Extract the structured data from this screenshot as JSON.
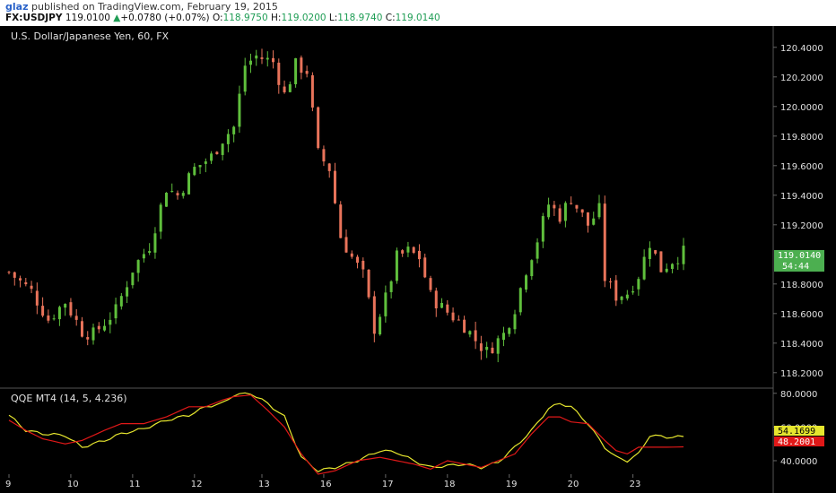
{
  "header": {
    "author": "glaz",
    "published_text": "published on TradingView.com, February 19, 2015",
    "symbol": "FX:USDJPY",
    "last": "119.0100",
    "change": "+0.0780 (+0.07%)",
    "open_label": "O:",
    "open": "118.9750",
    "high_label": "H:",
    "high": "119.0200",
    "low_label": "L:",
    "low": "118.9740",
    "close_label": "C:",
    "close": "119.0140"
  },
  "main_pane": {
    "title": "U.S. Dollar/Japanese Yen, 60, FX",
    "price_badge": "119.0140",
    "countdown_badge": "54:44"
  },
  "indicator_pane": {
    "title": "QQE MT4 (14, 5, 4.236)",
    "badge_yellow": "54.1699",
    "badge_red": "48.2001"
  },
  "colors": {
    "background": "#000000",
    "bull": "#5fbf3c",
    "bear": "#e8735a",
    "qqe_fast": "#e6e62e",
    "qqe_slow": "#e01818",
    "badge_green": "#4caf50",
    "axis_text": "#e0e0e0",
    "separator": "#555555"
  },
  "chart_data": [
    {
      "type": "candlestick",
      "title": "U.S. Dollar/Japanese Yen, 60, FX",
      "x_ticks": [
        "9",
        "10",
        "11",
        "12",
        "13",
        "16",
        "17",
        "18",
        "19",
        "20",
        "23"
      ],
      "y_ticks": [
        "120.4000",
        "120.2000",
        "120.0000",
        "119.8000",
        "119.6000",
        "119.4000",
        "119.2000",
        "118.8000",
        "118.6000",
        "118.4000",
        "118.2000"
      ],
      "ylim": [
        118.12,
        120.52
      ],
      "grid": false,
      "close_path": [
        [
          0,
          118.88
        ],
        [
          4,
          118.75
        ],
        [
          7,
          118.56
        ],
        [
          10,
          118.68
        ],
        [
          13,
          118.48
        ],
        [
          15,
          118.46
        ],
        [
          19,
          118.62
        ],
        [
          22,
          118.9
        ],
        [
          25,
          119.06
        ],
        [
          28,
          119.45
        ],
        [
          30,
          119.4
        ],
        [
          33,
          119.58
        ],
        [
          36,
          119.66
        ],
        [
          38,
          119.78
        ],
        [
          40,
          119.86
        ],
        [
          42,
          120.28
        ],
        [
          44,
          120.34
        ],
        [
          47,
          120.3
        ],
        [
          49,
          120.08
        ],
        [
          51,
          120.28
        ],
        [
          53,
          120.24
        ],
        [
          55,
          119.68
        ],
        [
          57,
          119.58
        ],
        [
          59,
          119.12
        ],
        [
          61,
          118.98
        ],
        [
          63,
          118.86
        ],
        [
          65,
          118.5
        ],
        [
          67,
          118.7
        ],
        [
          69,
          118.98
        ],
        [
          71,
          119.02
        ],
        [
          73,
          118.98
        ],
        [
          75,
          118.72
        ],
        [
          77,
          118.64
        ],
        [
          79,
          118.58
        ],
        [
          81,
          118.52
        ],
        [
          83,
          118.42
        ],
        [
          85,
          118.34
        ],
        [
          88,
          118.46
        ],
        [
          90,
          118.64
        ],
        [
          92,
          118.9
        ],
        [
          94,
          119.1
        ],
        [
          96,
          119.34
        ],
        [
          98,
          119.26
        ],
        [
          100,
          119.38
        ],
        [
          103,
          119.2
        ],
        [
          105,
          119.3
        ],
        [
          106,
          118.84
        ],
        [
          108,
          118.72
        ],
        [
          110,
          118.74
        ],
        [
          112,
          118.86
        ],
        [
          114,
          119.08
        ],
        [
          116,
          118.9
        ],
        [
          118,
          118.96
        ],
        [
          120,
          119.014
        ]
      ]
    },
    {
      "type": "line",
      "title": "QQE MT4 (14, 5, 4.236)",
      "y_ticks": [
        "80.0000",
        "60.0000",
        "40.0000"
      ],
      "ylim": [
        32,
        82
      ],
      "series": [
        {
          "color": "#e6e62e",
          "points": [
            [
              0,
              67
            ],
            [
              3,
              58
            ],
            [
              6,
              56
            ],
            [
              10,
              55
            ],
            [
              13,
              48
            ],
            [
              17,
              52
            ],
            [
              20,
              56
            ],
            [
              24,
              59
            ],
            [
              28,
              64
            ],
            [
              32,
              67
            ],
            [
              35,
              72
            ],
            [
              38,
              74
            ],
            [
              40,
              79
            ],
            [
              43,
              80
            ],
            [
              46,
              74
            ],
            [
              49,
              66
            ],
            [
              52,
              42
            ],
            [
              55,
              34
            ],
            [
              58,
              36
            ],
            [
              62,
              40
            ],
            [
              66,
              46
            ],
            [
              69,
              45
            ],
            [
              72,
              40
            ],
            [
              75,
              36
            ],
            [
              78,
              37
            ],
            [
              81,
              38
            ],
            [
              84,
              36
            ],
            [
              87,
              39
            ],
            [
              90,
              48
            ],
            [
              93,
              58
            ],
            [
              96,
              71
            ],
            [
              98,
              74
            ],
            [
              100,
              72
            ],
            [
              103,
              62
            ],
            [
              106,
              48
            ],
            [
              108,
              42
            ],
            [
              110,
              40
            ],
            [
              112,
              44
            ],
            [
              114,
              55
            ],
            [
              117,
              54
            ],
            [
              120,
              54.17
            ]
          ]
        },
        {
          "color": "#e01818",
          "points": [
            [
              0,
              64
            ],
            [
              3,
              58
            ],
            [
              6,
              53
            ],
            [
              10,
              50
            ],
            [
              13,
              52
            ],
            [
              17,
              58
            ],
            [
              20,
              62
            ],
            [
              24,
              62
            ],
            [
              28,
              66
            ],
            [
              32,
              72
            ],
            [
              35,
              72
            ],
            [
              38,
              76
            ],
            [
              40,
              78
            ],
            [
              43,
              79
            ],
            [
              46,
              70
            ],
            [
              49,
              60
            ],
            [
              52,
              44
            ],
            [
              55,
              32
            ],
            [
              58,
              34
            ],
            [
              62,
              40
            ],
            [
              66,
              42
            ],
            [
              69,
              40
            ],
            [
              72,
              38
            ],
            [
              75,
              35
            ],
            [
              78,
              40
            ],
            [
              81,
              38
            ],
            [
              84,
              36
            ],
            [
              87,
              40
            ],
            [
              90,
              44
            ],
            [
              93,
              56
            ],
            [
              96,
              66
            ],
            [
              98,
              66
            ],
            [
              100,
              63
            ],
            [
              103,
              62
            ],
            [
              106,
              52
            ],
            [
              108,
              46
            ],
            [
              110,
              44
            ],
            [
              112,
              48
            ],
            [
              114,
              48
            ],
            [
              117,
              48
            ],
            [
              120,
              48.2
            ]
          ]
        }
      ]
    }
  ]
}
